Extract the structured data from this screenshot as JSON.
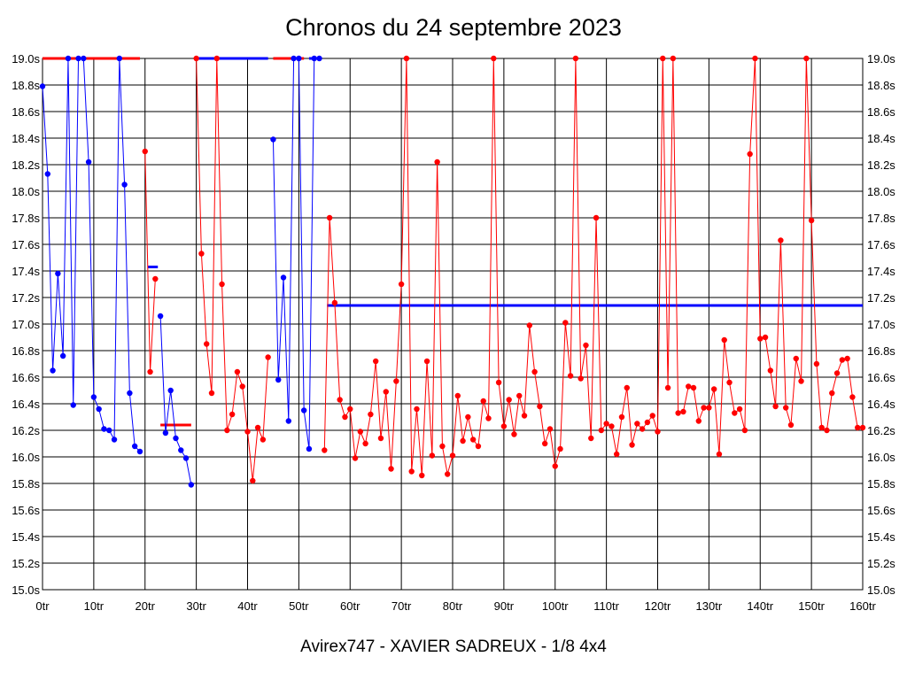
{
  "chart_data": {
    "type": "line",
    "title": "Chronos du 24 septembre 2023",
    "footer": "Avirex747 - XAVIER SADREUX - 1/8 4x4",
    "xlim": [
      0,
      160
    ],
    "ylim": [
      15.0,
      19.0
    ],
    "x_ticks": [
      0,
      10,
      20,
      30,
      40,
      50,
      60,
      70,
      80,
      90,
      100,
      110,
      120,
      130,
      140,
      150,
      160
    ],
    "x_tick_labels": [
      "0tr",
      "10tr",
      "20tr",
      "30tr",
      "40tr",
      "50tr",
      "60tr",
      "70tr",
      "80tr",
      "90tr",
      "100tr",
      "110tr",
      "120tr",
      "130tr",
      "140tr",
      "150tr",
      "160tr"
    ],
    "y_ticks": [
      15.0,
      15.2,
      15.4,
      15.6,
      15.8,
      16.0,
      16.2,
      16.4,
      16.6,
      16.8,
      17.0,
      17.2,
      17.4,
      17.6,
      17.8,
      18.0,
      18.2,
      18.4,
      18.6,
      18.8,
      19.0
    ],
    "y_tick_labels": [
      "15.0s",
      "15.2s",
      "15.4s",
      "15.6s",
      "15.8s",
      "16.0s",
      "16.2s",
      "16.4s",
      "16.6s",
      "16.8s",
      "17.0s",
      "17.2s",
      "17.4s",
      "17.6s",
      "17.8s",
      "18.0s",
      "18.2s",
      "18.4s",
      "18.6s",
      "18.8s",
      "19.0s"
    ],
    "grid": true,
    "series": [
      {
        "color": "#0000ff",
        "x": [
          0,
          1,
          2,
          3,
          4,
          5,
          6,
          7,
          8,
          9,
          10,
          11,
          12,
          13,
          14,
          15,
          16,
          17,
          18,
          19
        ],
        "y": [
          18.79,
          18.13,
          16.65,
          17.38,
          16.76,
          19.0,
          16.39,
          19.0,
          19.0,
          18.22,
          16.45,
          16.36,
          16.21,
          16.2,
          16.13,
          19.0,
          18.05,
          16.48,
          16.08,
          16.04
        ]
      },
      {
        "color": "#ff0000",
        "x": [
          20,
          21,
          22
        ],
        "y": [
          18.3,
          16.64,
          17.34
        ]
      },
      {
        "color": "#0000ff",
        "x": [
          23,
          24,
          25,
          26,
          27,
          28,
          29
        ],
        "y": [
          17.06,
          16.18,
          16.5,
          16.14,
          16.05,
          15.99,
          15.79
        ]
      },
      {
        "color": "#ff0000",
        "x": [
          30,
          31,
          32,
          33,
          34,
          35,
          36,
          37,
          38,
          39,
          40,
          41,
          42,
          43,
          44
        ],
        "y": [
          19.0,
          17.53,
          16.85,
          16.48,
          19.0,
          17.3,
          16.2,
          16.32,
          16.64,
          16.53,
          16.19,
          15.82,
          16.22,
          16.13,
          16.75
        ]
      },
      {
        "color": "#0000ff",
        "x": [
          45,
          46,
          47,
          48,
          49,
          50,
          51,
          52,
          53,
          54
        ],
        "y": [
          18.39,
          16.58,
          17.35,
          16.27,
          19.0,
          19.0,
          16.35,
          16.06,
          19.0,
          19.0
        ]
      },
      {
        "color": "#ff0000",
        "x": [
          55,
          56,
          57,
          58,
          59,
          60,
          61,
          62,
          63,
          64,
          65,
          66,
          67,
          68,
          69,
          70,
          71,
          72,
          73,
          74,
          75,
          76,
          77,
          78,
          79,
          80,
          81,
          82,
          83,
          84,
          85,
          86,
          87,
          88,
          89,
          90,
          91,
          92,
          93,
          94,
          95,
          96,
          97,
          98,
          99,
          100,
          101,
          102,
          103,
          104,
          105,
          106,
          107,
          108,
          109,
          110,
          111,
          112,
          113,
          114,
          115,
          116,
          117,
          118,
          119,
          120,
          121,
          122,
          123,
          124,
          125,
          126,
          127,
          128,
          129,
          130,
          131,
          132,
          133,
          134,
          135,
          136,
          137,
          138,
          139,
          140,
          141,
          142,
          143,
          144,
          145,
          146,
          147,
          148,
          149,
          150,
          151,
          152,
          153,
          154,
          155,
          156,
          157,
          158,
          159,
          160
        ],
        "y": [
          16.05,
          17.8,
          17.16,
          16.43,
          16.3,
          16.36,
          15.99,
          16.19,
          16.1,
          16.32,
          16.72,
          16.14,
          16.49,
          15.91,
          16.57,
          17.3,
          19.0,
          15.89,
          16.36,
          15.86,
          16.72,
          16.01,
          18.22,
          16.08,
          15.87,
          16.01,
          16.46,
          16.12,
          16.3,
          16.13,
          16.08,
          16.42,
          16.29,
          19.0,
          16.56,
          16.23,
          16.43,
          16.17,
          16.46,
          16.31,
          16.99,
          16.64,
          16.38,
          16.1,
          16.21,
          15.93,
          16.06,
          17.01,
          16.61,
          19.0,
          16.59,
          16.84,
          16.14,
          17.8,
          16.2,
          16.25,
          16.23,
          16.02,
          16.3,
          16.52,
          16.09,
          16.25,
          16.21,
          16.26,
          16.31,
          16.19,
          19.0,
          16.52,
          19.0,
          16.33,
          16.34,
          16.53,
          16.52,
          16.27,
          16.37,
          16.37,
          16.51,
          16.02,
          16.88,
          16.56,
          16.33,
          16.36,
          16.2,
          18.28,
          19.0,
          16.89,
          16.9,
          16.65,
          16.38,
          17.63,
          16.37,
          16.24,
          16.74,
          16.57,
          19.0,
          17.78,
          16.7,
          16.22,
          16.2,
          16.48,
          16.63,
          16.73,
          16.74,
          16.45,
          16.22,
          16.22
        ]
      }
    ],
    "overflow_lines": [
      {
        "color": "#ff0000",
        "x1": 0,
        "x2": 19
      },
      {
        "color": "#0000ff",
        "x1": 30,
        "x2": 44
      },
      {
        "color": "#ff0000",
        "x1": 45,
        "x2": 51
      },
      {
        "color": "#0000ff",
        "x1": 52,
        "x2": 54
      }
    ],
    "average_lines": [
      {
        "color": "#0000ff",
        "x1": 20.5,
        "x2": 22.5,
        "y": 17.43
      },
      {
        "color": "#ff0000",
        "x1": 23,
        "x2": 29,
        "y": 16.24
      },
      {
        "color": "#0000ff",
        "x1": 55.5,
        "x2": 160,
        "y": 17.14
      }
    ]
  }
}
